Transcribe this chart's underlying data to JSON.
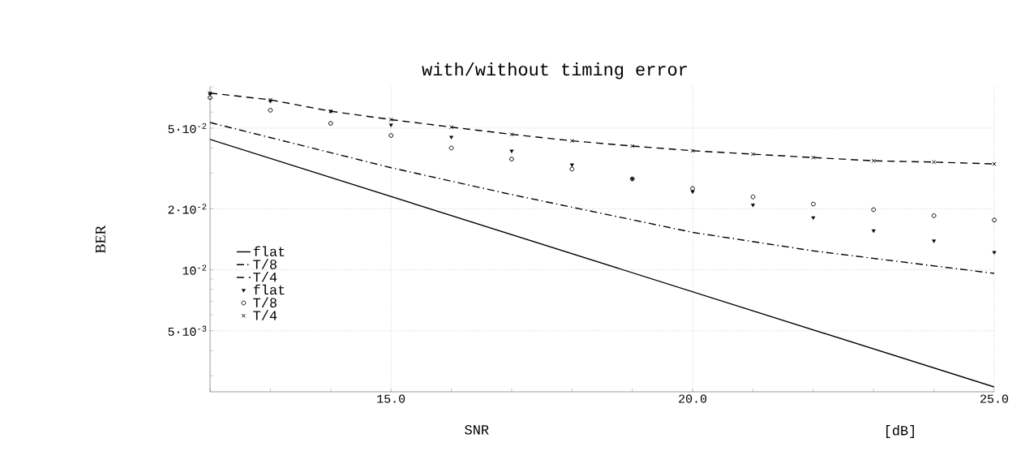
{
  "chart_data": {
    "type": "line",
    "title": "with/without timing error",
    "xlabel": "SNR",
    "ylabel": "BER",
    "annotations": [
      "[dB]"
    ],
    "log": "y",
    "grid": true,
    "legend": "left",
    "xlim": [
      12,
      25
    ],
    "ylim": [
      0.0025,
      0.08
    ],
    "xticks": [
      {
        "value": 12,
        "label": null
      },
      {
        "value": 13,
        "label": null
      },
      {
        "value": 14,
        "label": null
      },
      {
        "value": 15,
        "label": "15.0"
      },
      {
        "value": 16,
        "label": null
      },
      {
        "value": 17,
        "label": null
      },
      {
        "value": 18,
        "label": null
      },
      {
        "value": 19,
        "label": null
      },
      {
        "value": 20,
        "label": "20.0"
      },
      {
        "value": 21,
        "label": null
      },
      {
        "value": 22,
        "label": null
      },
      {
        "value": 23,
        "label": null
      },
      {
        "value": 24,
        "label": null
      },
      {
        "value": 25,
        "label": "25.0"
      }
    ],
    "yticks": [
      {
        "value": 0.003,
        "label": null
      },
      {
        "value": 0.004,
        "label": null
      },
      {
        "value": 0.005,
        "label": "5·10$^{-3}$"
      },
      {
        "value": 0.006,
        "label": null
      },
      {
        "value": 0.007,
        "label": null
      },
      {
        "value": 0.008,
        "label": null
      },
      {
        "value": 0.009,
        "label": null
      },
      {
        "value": 0.01,
        "label": "10$^{-2}$"
      },
      {
        "value": 0.02,
        "label": "2·10$^{-2}$"
      },
      {
        "value": 0.03,
        "label": null
      },
      {
        "value": 0.04,
        "label": null
      },
      {
        "value": 0.05,
        "label": "5·10$^{-2}$"
      },
      {
        "value": 0.06,
        "label": null
      },
      {
        "value": 0.07,
        "label": null
      },
      {
        "value": 0.08,
        "label": null
      }
    ],
    "series": [
      {
        "name": "flat",
        "line_style": "solid",
        "color": "#000000",
        "x": [
          12,
          25
        ],
        "values": [
          0.044,
          0.00264
        ]
      },
      {
        "name": "T/8",
        "line_style": "dashdot",
        "color": "#000000",
        "x": [
          12,
          15,
          17,
          20,
          22,
          25
        ],
        "values": [
          0.0533,
          0.0319,
          0.0235,
          0.0153,
          0.0124,
          0.0096
        ]
      },
      {
        "name": "T/4",
        "line_style": "dashed",
        "color": "#000000",
        "x": [
          12,
          13,
          14,
          15,
          16,
          17,
          18,
          19,
          20,
          21,
          22,
          23,
          24,
          25
        ],
        "values": [
          0.0745,
          0.069,
          0.0606,
          0.0551,
          0.0506,
          0.0466,
          0.0433,
          0.0408,
          0.0387,
          0.0372,
          0.0358,
          0.0345,
          0.034,
          0.0333
        ]
      },
      {
        "name": "flat",
        "type": "scatter",
        "marker": "triangle",
        "color": "#000000",
        "x": [
          12,
          13,
          14,
          15,
          16,
          17,
          18,
          19,
          20,
          21,
          22,
          23,
          24,
          25
        ],
        "values": [
          0.074,
          0.068,
          0.0606,
          0.0519,
          0.0452,
          0.0386,
          0.033,
          0.0281,
          0.0243,
          0.0209,
          0.0181,
          0.0156,
          0.0139,
          0.0122
        ]
      },
      {
        "name": "T/8",
        "type": "scatter",
        "marker": "circle",
        "color": "#000000",
        "x": [
          12,
          13,
          14,
          15,
          16,
          17,
          18,
          19,
          20,
          21,
          22,
          23,
          24,
          25
        ],
        "values": [
          0.0708,
          0.0613,
          0.0528,
          0.046,
          0.0399,
          0.0352,
          0.0314,
          0.0281,
          0.0252,
          0.0229,
          0.0211,
          0.0198,
          0.0185,
          0.0176
        ]
      },
      {
        "name": "T/4",
        "type": "scatter",
        "marker": "cross",
        "color": "#000000",
        "x": [
          12,
          13,
          14,
          15,
          16,
          17,
          18,
          19,
          20,
          21,
          22,
          23,
          24,
          25
        ],
        "values": [
          0.0745,
          0.069,
          0.0606,
          0.0551,
          0.0506,
          0.0466,
          0.0433,
          0.0408,
          0.0387,
          0.0372,
          0.0358,
          0.0345,
          0.034,
          0.0333
        ]
      }
    ]
  }
}
